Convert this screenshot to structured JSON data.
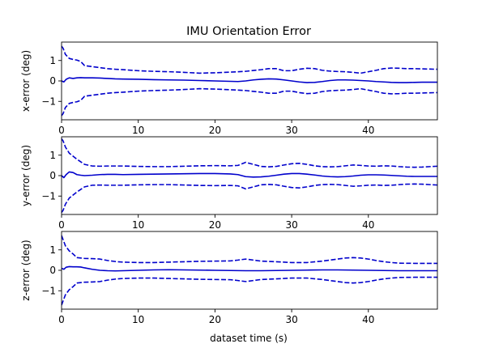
{
  "figure": {
    "title": "IMU Orientation Error",
    "xlabel": "dataset time (s)"
  },
  "chart_data": [
    {
      "type": "line",
      "ylabel": "x-error (deg)",
      "xlim": [
        0,
        49
      ],
      "ylim": [
        -1.9,
        1.9
      ],
      "xticks": [
        0,
        10,
        20,
        30,
        40
      ],
      "yticks": [
        -1,
        0,
        1
      ],
      "color": "#0000cc",
      "series": [
        {
          "role": "estimate",
          "style": "solid",
          "x": [
            0,
            0.3,
            0.6,
            1,
            1.5,
            2,
            2.5,
            3,
            4,
            5,
            6,
            7,
            8,
            10,
            12,
            14,
            16,
            18,
            20,
            22,
            23,
            24,
            25,
            26,
            27,
            28,
            29,
            30,
            31,
            32,
            33,
            34,
            35,
            36,
            37,
            38,
            39,
            40,
            41,
            42,
            43,
            44,
            45,
            46,
            47,
            48,
            49
          ],
          "y": [
            0,
            -0.05,
            0.08,
            0.15,
            0.12,
            0.15,
            0.16,
            0.15,
            0.15,
            0.14,
            0.12,
            0.1,
            0.09,
            0.08,
            0.06,
            0.05,
            0.04,
            0.02,
            0,
            -0.02,
            -0.03,
            0,
            0.05,
            0.08,
            0.1,
            0.09,
            0.05,
            0,
            -0.05,
            -0.08,
            -0.07,
            -0.03,
            0.02,
            0.05,
            0.05,
            0.04,
            0.02,
            0,
            -0.03,
            -0.05,
            -0.07,
            -0.08,
            -0.08,
            -0.07,
            -0.06,
            -0.06,
            -0.06
          ]
        },
        {
          "role": "upper-bound",
          "style": "dashed",
          "x": [
            0,
            0.2,
            0.5,
            1,
            1.5,
            2,
            2.5,
            3,
            4,
            5,
            6,
            7,
            8,
            10,
            12,
            14,
            16,
            18,
            20,
            22,
            24,
            26,
            27,
            28,
            29,
            30,
            31,
            32,
            33,
            34,
            35,
            36,
            37,
            38,
            39,
            40,
            41,
            42,
            43,
            44,
            45,
            46,
            47,
            48,
            49
          ],
          "y": [
            1.7,
            1.6,
            1.3,
            1.1,
            1.05,
            1.02,
            0.95,
            0.75,
            0.7,
            0.65,
            0.6,
            0.57,
            0.55,
            0.5,
            0.47,
            0.45,
            0.42,
            0.38,
            0.4,
            0.43,
            0.47,
            0.55,
            0.6,
            0.6,
            0.5,
            0.5,
            0.57,
            0.62,
            0.6,
            0.52,
            0.48,
            0.46,
            0.45,
            0.42,
            0.38,
            0.45,
            0.52,
            0.6,
            0.63,
            0.62,
            0.6,
            0.6,
            0.59,
            0.58,
            0.57
          ]
        },
        {
          "role": "lower-bound",
          "style": "dashed",
          "x": [
            0,
            0.2,
            0.5,
            1,
            1.5,
            2,
            2.5,
            3,
            4,
            5,
            6,
            7,
            8,
            10,
            12,
            14,
            16,
            18,
            20,
            22,
            24,
            26,
            27,
            28,
            29,
            30,
            31,
            32,
            33,
            34,
            35,
            36,
            37,
            38,
            39,
            40,
            41,
            42,
            43,
            44,
            45,
            46,
            47,
            48,
            49
          ],
          "y": [
            -1.7,
            -1.6,
            -1.3,
            -1.1,
            -1.05,
            -1.02,
            -0.95,
            -0.75,
            -0.7,
            -0.65,
            -0.6,
            -0.57,
            -0.55,
            -0.5,
            -0.47,
            -0.45,
            -0.42,
            -0.38,
            -0.4,
            -0.43,
            -0.47,
            -0.55,
            -0.6,
            -0.6,
            -0.5,
            -0.5,
            -0.57,
            -0.62,
            -0.6,
            -0.52,
            -0.48,
            -0.46,
            -0.45,
            -0.42,
            -0.38,
            -0.45,
            -0.52,
            -0.6,
            -0.63,
            -0.62,
            -0.6,
            -0.6,
            -0.59,
            -0.58,
            -0.57
          ]
        }
      ]
    },
    {
      "type": "line",
      "ylabel": "y-error (deg)",
      "xlim": [
        0,
        49
      ],
      "ylim": [
        -1.9,
        1.9
      ],
      "xticks": [
        0,
        10,
        20,
        30,
        40
      ],
      "yticks": [
        -1,
        0,
        1
      ],
      "color": "#0000cc",
      "series": [
        {
          "role": "estimate",
          "style": "solid",
          "x": [
            0,
            0.3,
            0.6,
            1,
            1.5,
            2,
            2.5,
            3,
            4,
            5,
            6,
            7,
            8,
            10,
            12,
            14,
            16,
            18,
            20,
            22,
            23,
            24,
            25,
            26,
            27,
            28,
            29,
            30,
            31,
            32,
            33,
            34,
            35,
            36,
            37,
            38,
            39,
            40,
            41,
            42,
            43,
            44,
            45,
            46,
            47,
            48,
            49
          ],
          "y": [
            0,
            -0.1,
            0.05,
            0.18,
            0.15,
            0.05,
            0.02,
            0.0,
            0.02,
            0.05,
            0.06,
            0.06,
            0.05,
            0.06,
            0.07,
            0.08,
            0.09,
            0.1,
            0.1,
            0.08,
            0.05,
            -0.05,
            -0.07,
            -0.06,
            -0.03,
            0.02,
            0.07,
            0.1,
            0.1,
            0.07,
            0.03,
            -0.02,
            -0.05,
            -0.06,
            -0.05,
            -0.02,
            0.02,
            0.04,
            0.04,
            0.03,
            0.01,
            -0.01,
            -0.03,
            -0.04,
            -0.04,
            -0.04,
            -0.04
          ]
        },
        {
          "role": "upper-bound",
          "style": "dashed",
          "x": [
            0,
            0.2,
            0.5,
            1,
            1.5,
            2,
            3,
            4,
            5,
            6,
            8,
            10,
            12,
            14,
            16,
            18,
            20,
            22,
            23,
            24,
            25,
            26,
            27,
            28,
            29,
            30,
            31,
            32,
            33,
            34,
            35,
            36,
            37,
            38,
            39,
            40,
            41,
            42,
            43,
            44,
            45,
            46,
            47,
            48,
            49
          ],
          "y": [
            1.8,
            1.7,
            1.4,
            1.1,
            0.95,
            0.8,
            0.55,
            0.47,
            0.46,
            0.47,
            0.47,
            0.45,
            0.44,
            0.44,
            0.46,
            0.48,
            0.49,
            0.48,
            0.5,
            0.65,
            0.55,
            0.45,
            0.43,
            0.45,
            0.52,
            0.58,
            0.6,
            0.55,
            0.48,
            0.44,
            0.43,
            0.44,
            0.48,
            0.52,
            0.5,
            0.47,
            0.46,
            0.48,
            0.47,
            0.44,
            0.42,
            0.41,
            0.42,
            0.44,
            0.46
          ]
        },
        {
          "role": "lower-bound",
          "style": "dashed",
          "x": [
            0,
            0.2,
            0.5,
            1,
            1.5,
            2,
            3,
            4,
            5,
            6,
            8,
            10,
            12,
            14,
            16,
            18,
            20,
            22,
            23,
            24,
            25,
            26,
            27,
            28,
            29,
            30,
            31,
            32,
            33,
            34,
            35,
            36,
            37,
            38,
            39,
            40,
            41,
            42,
            43,
            44,
            45,
            46,
            47,
            48,
            49
          ],
          "y": [
            -1.8,
            -1.7,
            -1.4,
            -1.1,
            -0.95,
            -0.8,
            -0.55,
            -0.47,
            -0.46,
            -0.47,
            -0.47,
            -0.45,
            -0.44,
            -0.44,
            -0.46,
            -0.48,
            -0.49,
            -0.48,
            -0.5,
            -0.65,
            -0.55,
            -0.45,
            -0.43,
            -0.45,
            -0.52,
            -0.58,
            -0.6,
            -0.55,
            -0.48,
            -0.44,
            -0.43,
            -0.44,
            -0.48,
            -0.52,
            -0.5,
            -0.47,
            -0.46,
            -0.48,
            -0.47,
            -0.44,
            -0.42,
            -0.41,
            -0.42,
            -0.44,
            -0.46
          ]
        }
      ]
    },
    {
      "type": "line",
      "ylabel": "z-error (deg)",
      "xlim": [
        0,
        49
      ],
      "ylim": [
        -1.9,
        1.9
      ],
      "xticks": [
        0,
        10,
        20,
        30,
        40
      ],
      "yticks": [
        -1,
        0,
        1
      ],
      "color": "#0000cc",
      "series": [
        {
          "role": "estimate",
          "style": "solid",
          "x": [
            0,
            0.3,
            0.6,
            1,
            1.5,
            2,
            2.5,
            3,
            4,
            5,
            6,
            7,
            8,
            10,
            12,
            14,
            16,
            18,
            20,
            22,
            24,
            26,
            28,
            30,
            32,
            34,
            36,
            38,
            40,
            42,
            44,
            46,
            48,
            49
          ],
          "y": [
            0.1,
            0.05,
            0.15,
            0.18,
            0.17,
            0.17,
            0.16,
            0.12,
            0.05,
            0.0,
            -0.02,
            -0.03,
            -0.02,
            0.0,
            0.02,
            0.03,
            0.02,
            0.01,
            0.0,
            -0.01,
            -0.02,
            -0.02,
            -0.01,
            0.0,
            0.01,
            0.02,
            0.02,
            0.01,
            0.0,
            -0.01,
            -0.02,
            -0.02,
            -0.02,
            -0.02
          ]
        },
        {
          "role": "upper-bound",
          "style": "dashed",
          "x": [
            0,
            0.2,
            0.5,
            1,
            1.5,
            2,
            3,
            4,
            5,
            6,
            7,
            8,
            10,
            12,
            14,
            16,
            18,
            20,
            22,
            23,
            24,
            25,
            26,
            28,
            30,
            32,
            34,
            35,
            36,
            37,
            38,
            39,
            40,
            41,
            42,
            43,
            44,
            46,
            48,
            49
          ],
          "y": [
            1.7,
            1.5,
            1.2,
            0.95,
            0.8,
            0.62,
            0.58,
            0.57,
            0.55,
            0.48,
            0.43,
            0.4,
            0.38,
            0.38,
            0.4,
            0.42,
            0.44,
            0.45,
            0.46,
            0.5,
            0.55,
            0.5,
            0.45,
            0.42,
            0.38,
            0.38,
            0.45,
            0.5,
            0.55,
            0.6,
            0.62,
            0.6,
            0.55,
            0.48,
            0.42,
            0.38,
            0.35,
            0.34,
            0.34,
            0.34
          ]
        },
        {
          "role": "lower-bound",
          "style": "dashed",
          "x": [
            0,
            0.2,
            0.5,
            1,
            1.5,
            2,
            3,
            4,
            5,
            6,
            7,
            8,
            10,
            12,
            14,
            16,
            18,
            20,
            22,
            23,
            24,
            25,
            26,
            28,
            30,
            32,
            34,
            35,
            36,
            37,
            38,
            39,
            40,
            41,
            42,
            43,
            44,
            46,
            48,
            49
          ],
          "y": [
            -1.7,
            -1.5,
            -1.2,
            -0.95,
            -0.8,
            -0.62,
            -0.58,
            -0.57,
            -0.55,
            -0.48,
            -0.43,
            -0.4,
            -0.38,
            -0.38,
            -0.4,
            -0.42,
            -0.44,
            -0.45,
            -0.46,
            -0.5,
            -0.55,
            -0.5,
            -0.45,
            -0.42,
            -0.38,
            -0.38,
            -0.45,
            -0.5,
            -0.55,
            -0.6,
            -0.62,
            -0.6,
            -0.55,
            -0.48,
            -0.42,
            -0.38,
            -0.35,
            -0.34,
            -0.34,
            -0.34
          ]
        }
      ]
    }
  ]
}
